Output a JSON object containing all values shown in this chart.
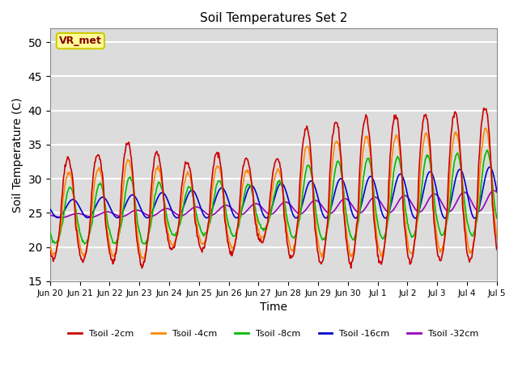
{
  "title": "Soil Temperatures Set 2",
  "xlabel": "Time",
  "ylabel": "Soil Temperature (C)",
  "ylim": [
    15,
    52
  ],
  "yticks": [
    15,
    20,
    25,
    30,
    35,
    40,
    45,
    50
  ],
  "bg_color": "#dcdcdc",
  "grid_color": "white",
  "annotation_text": "VR_met",
  "annotation_bg": "#ffff99",
  "annotation_border": "#cccc00",
  "series": {
    "Tsoil -2cm": {
      "color": "#cc0000",
      "lw": 1.2
    },
    "Tsoil -4cm": {
      "color": "#ff8800",
      "lw": 1.2
    },
    "Tsoil -8cm": {
      "color": "#00bb00",
      "lw": 1.2
    },
    "Tsoil -16cm": {
      "color": "#0000cc",
      "lw": 1.2
    },
    "Tsoil -32cm": {
      "color": "#9900bb",
      "lw": 1.2
    }
  },
  "xtick_labels": [
    "Jun 20",
    "Jun 21",
    "Jun 22",
    "Jun 23",
    "Jun 24",
    "Jun 25",
    "Jun 26",
    "Jun 27",
    "Jun 28",
    "Jun 29",
    "Jun 30",
    "Jul 1",
    "Jul 2",
    "Jul 3",
    "Jul 4",
    "Jul 5"
  ],
  "total_days": 15,
  "pts_per_day": 48
}
